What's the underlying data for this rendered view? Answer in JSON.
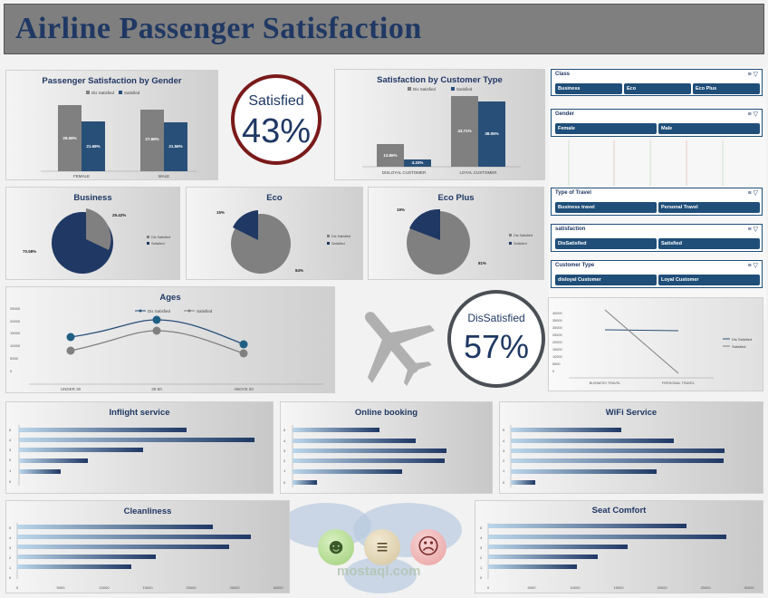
{
  "title": "Airline Passenger Satisfaction",
  "colors": {
    "navy": "#1f3864",
    "bar_dark": "#284f78",
    "bar_grey": "#808080",
    "accent_red": "#8b1a1a"
  },
  "kpi_satisfied": {
    "label": "Satisfied",
    "value": "43%"
  },
  "kpi_dissatisfied": {
    "label": "DisSatisfied",
    "value": "57%"
  },
  "gender_chart": {
    "title": "Passenger Satisfaction by Gender",
    "legend": [
      "Dis Satisfied",
      "Satisfied"
    ],
    "categories": [
      "FEMALE",
      "MALE"
    ],
    "labels": {
      "female_dis": "29.08%",
      "female_sat": "21.68%",
      "male_dis": "27.68%",
      "male_sat": "21.56%"
    }
  },
  "customer_chart": {
    "title": "Satisfaction by Customer Type",
    "legend": [
      "Dis Satisfied",
      "Satisfied"
    ],
    "categories": [
      "DISLOYAL CUSTOMER",
      "LOYAL CUSTOMER"
    ],
    "labels": {
      "disloyal_dis": "13.86%",
      "disloyal_sat": "4.33%",
      "loyal_dis": "43.71%",
      "loyal_sat": "38.05%"
    }
  },
  "pie_business": {
    "title": "Business",
    "labels": {
      "sat": "70.58%",
      "dis": "29.42%"
    },
    "legend": [
      "Dis Satisfied",
      "Satisfied"
    ]
  },
  "pie_eco": {
    "title": "Eco",
    "labels": {
      "sat": "15%",
      "dis": "84%"
    },
    "legend": [
      "Dis Satisfied",
      "Satisfied"
    ]
  },
  "pie_ecoplus": {
    "title": "Eco Plus",
    "labels": {
      "sat": "19%",
      "dis": "81%"
    },
    "legend": [
      "Dis Satisfied",
      "Satisfied"
    ]
  },
  "ages_chart": {
    "title": "Ages",
    "legend": [
      "Dis Satisfied",
      "Satisfied"
    ],
    "categories": [
      "UNDER 30",
      "30-50",
      "ABOVE 50"
    ],
    "yticks": [
      "25000",
      "20000",
      "15000",
      "10000",
      "5000",
      "0"
    ]
  },
  "travel_chart": {
    "legend": [
      "Dis Satisfied",
      "Satisfied"
    ],
    "categories": [
      "BUSINESS TRAVEL",
      "PERSONAL TRAVEL"
    ],
    "yticks": [
      "40000",
      "35000",
      "30000",
      "25000",
      "20000",
      "15000",
      "10000",
      "5000",
      "0"
    ]
  },
  "slicers": {
    "class": {
      "header": "Class",
      "items": [
        "Business",
        "Eco",
        "Eco Plus"
      ]
    },
    "gender": {
      "header": "Gender",
      "items": [
        "Female",
        "Male"
      ]
    },
    "travel_type": {
      "header": "Type of Travel",
      "items": [
        "Business travel",
        "Personal Travel"
      ]
    },
    "satisfaction": {
      "header": "satisfaction",
      "items": [
        "DisSatisfied",
        "Satisfied"
      ]
    },
    "customer_type": {
      "header": "Customer Type",
      "items": [
        "disloyal Customer",
        "Loyal Customer"
      ]
    }
  },
  "service_charts": {
    "inflight": {
      "title": "Inflight service",
      "ylabels": [
        "5",
        "4",
        "3",
        "2",
        "1",
        "0"
      ]
    },
    "online_booking": {
      "title": "Online booking",
      "ylabels": [
        "5",
        "4",
        "3",
        "2",
        "1",
        "0"
      ]
    },
    "wifi": {
      "title": "WiFi Service",
      "ylabels": [
        "5",
        "4",
        "3",
        "2",
        "1",
        "0"
      ]
    },
    "cleanliness": {
      "title": "Cleanliness",
      "ylabels": [
        "5",
        "4",
        "3",
        "2",
        "1",
        "0"
      ],
      "xticks": [
        "0",
        "5000",
        "10000",
        "15000",
        "20000",
        "25000",
        "30000"
      ]
    },
    "seat_comfort": {
      "title": "Seat Comfort",
      "ylabels": [
        "5",
        "4",
        "3",
        "2",
        "1",
        "0"
      ],
      "xticks": [
        "0",
        "5000",
        "10000",
        "15000",
        "20000",
        "25000",
        "30000"
      ]
    }
  },
  "watermark": "mostaql.com"
}
